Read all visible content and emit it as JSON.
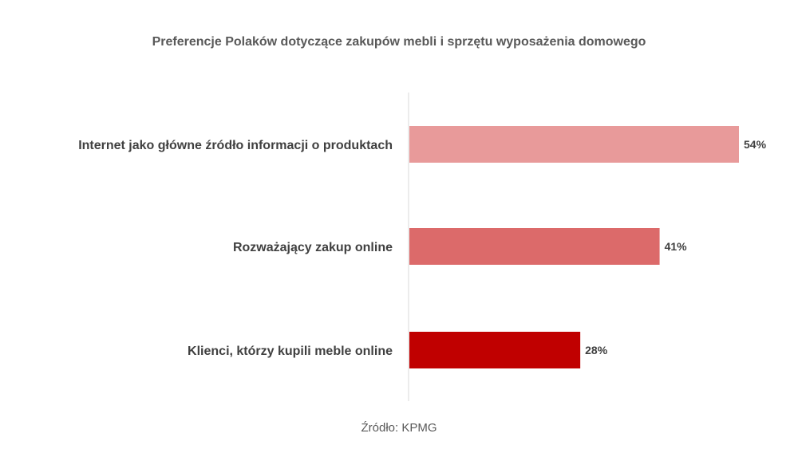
{
  "chart_data": {
    "type": "bar",
    "orientation": "horizontal",
    "title": "Preferencje Polaków dotyczące zakupów mebli i sprzętu wyposażenia domowego",
    "source": "Źródło: KPMG",
    "categories": [
      "Internet jako główne źródło informacji o produktach",
      "Rozważający zakup online",
      "Klienci, którzy kupili meble online"
    ],
    "values": [
      54,
      41,
      28
    ],
    "data_labels": [
      "54%",
      "41%",
      "28%"
    ],
    "value_unit": "%",
    "xlim": [
      0,
      54
    ],
    "grid": false,
    "legend": "none",
    "colors": [
      "#E89A9A",
      "#DC6A6A",
      "#C00000"
    ]
  },
  "colors": {
    "axis_line": "#D9D9D9",
    "label_text": "#404040",
    "title_text": "#595959"
  }
}
